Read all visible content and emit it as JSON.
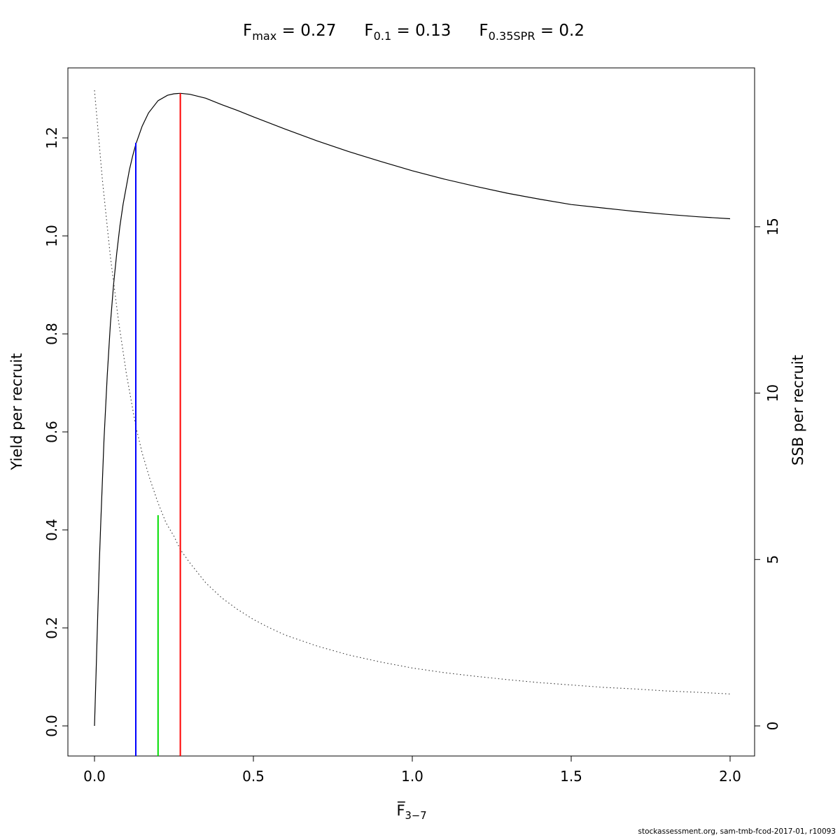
{
  "title": {
    "stats": [
      {
        "base": "F",
        "sub": "max",
        "value": " = 0.27"
      },
      {
        "base": "F",
        "sub": "0.1",
        "value": " = 0.13"
      },
      {
        "base": "F",
        "sub": "0.35SPR",
        "value": " = 0.2"
      }
    ]
  },
  "axes": {
    "x": {
      "label_base": "F̅",
      "label_sub": "3−7",
      "ticks": [
        "0.0",
        "0.5",
        "1.0",
        "1.5",
        "2.0"
      ],
      "range": [
        0,
        2.0
      ]
    },
    "y_left": {
      "label": "Yield per recruit",
      "ticks": [
        "0.0",
        "0.2",
        "0.4",
        "0.6",
        "0.8",
        "1.0",
        "1.2"
      ],
      "range": [
        0,
        1.2
      ]
    },
    "y_right": {
      "label": "SSB per recruit",
      "ticks": [
        "0",
        "5",
        "10",
        "15"
      ],
      "range": [
        0,
        15
      ]
    }
  },
  "footer": "stockassessment.org, sam-tmb-fcod-2017-01, r10093",
  "chart_data": {
    "type": "line",
    "title": "Fmax = 0.27   F0.1 = 0.13   F0.35SPR = 0.2",
    "xlabel": "Fbar(3-7)",
    "ylabel_left": "Yield per recruit",
    "ylabel_right": "SSB per recruit",
    "xlim": [
      0,
      2.0
    ],
    "ylim_left": [
      0,
      1.3
    ],
    "ylim_right": [
      0,
      19.5
    ],
    "grid": false,
    "legend": "none",
    "series": [
      {
        "name": "Yield per recruit",
        "axis": "left",
        "style": "solid",
        "color": "#000000",
        "x": [
          0,
          0.005,
          0.01,
          0.015,
          0.02,
          0.03,
          0.04,
          0.05,
          0.06,
          0.07,
          0.08,
          0.09,
          0.1,
          0.11,
          0.12,
          0.13,
          0.15,
          0.17,
          0.2,
          0.23,
          0.25,
          0.27,
          0.3,
          0.35,
          0.4,
          0.45,
          0.5,
          0.6,
          0.7,
          0.8,
          0.9,
          1.0,
          1.1,
          1.2,
          1.3,
          1.4,
          1.5,
          1.6,
          1.7,
          1.8,
          1.9,
          2.0
        ],
        "y": [
          0,
          0.11,
          0.22,
          0.33,
          0.42,
          0.585,
          0.715,
          0.82,
          0.9,
          0.965,
          1.02,
          1.065,
          1.1,
          1.135,
          1.163,
          1.187,
          1.224,
          1.251,
          1.276,
          1.287,
          1.29,
          1.291,
          1.289,
          1.281,
          1.268,
          1.256,
          1.243,
          1.218,
          1.194,
          1.172,
          1.152,
          1.133,
          1.116,
          1.101,
          1.087,
          1.075,
          1.064,
          1.057,
          1.05,
          1.044,
          1.039,
          1.035
        ]
      },
      {
        "name": "SSB per recruit",
        "axis": "right",
        "style": "dotted",
        "color": "#333333",
        "x": [
          0,
          0.025,
          0.05,
          0.075,
          0.1,
          0.13,
          0.15,
          0.175,
          0.2,
          0.225,
          0.25,
          0.27,
          0.3,
          0.35,
          0.4,
          0.45,
          0.5,
          0.55,
          0.6,
          0.7,
          0.8,
          0.9,
          1.0,
          1.1,
          1.2,
          1.3,
          1.4,
          1.5,
          1.6,
          1.7,
          1.8,
          1.9,
          2.0
        ],
        "y": [
          19.1,
          16.4,
          14.1,
          12.2,
          10.6,
          9.0,
          8.2,
          7.4,
          6.7,
          6.1,
          5.7,
          5.3,
          4.9,
          4.3,
          3.85,
          3.5,
          3.2,
          2.95,
          2.73,
          2.4,
          2.13,
          1.92,
          1.74,
          1.6,
          1.49,
          1.39,
          1.3,
          1.23,
          1.16,
          1.11,
          1.05,
          1.01,
          0.96
        ]
      }
    ],
    "ref_lines": [
      {
        "name": "F0.1",
        "x": 0.13,
        "y_top": 1.19,
        "axis": "left",
        "color": "#0000ff"
      },
      {
        "name": "F0.35SPR",
        "x": 0.2,
        "y_top": 0.43,
        "axis": "left",
        "color": "#00dd00"
      },
      {
        "name": "Fmax",
        "x": 0.27,
        "y_top": 1.291,
        "axis": "left",
        "color": "#ff0000"
      }
    ]
  }
}
